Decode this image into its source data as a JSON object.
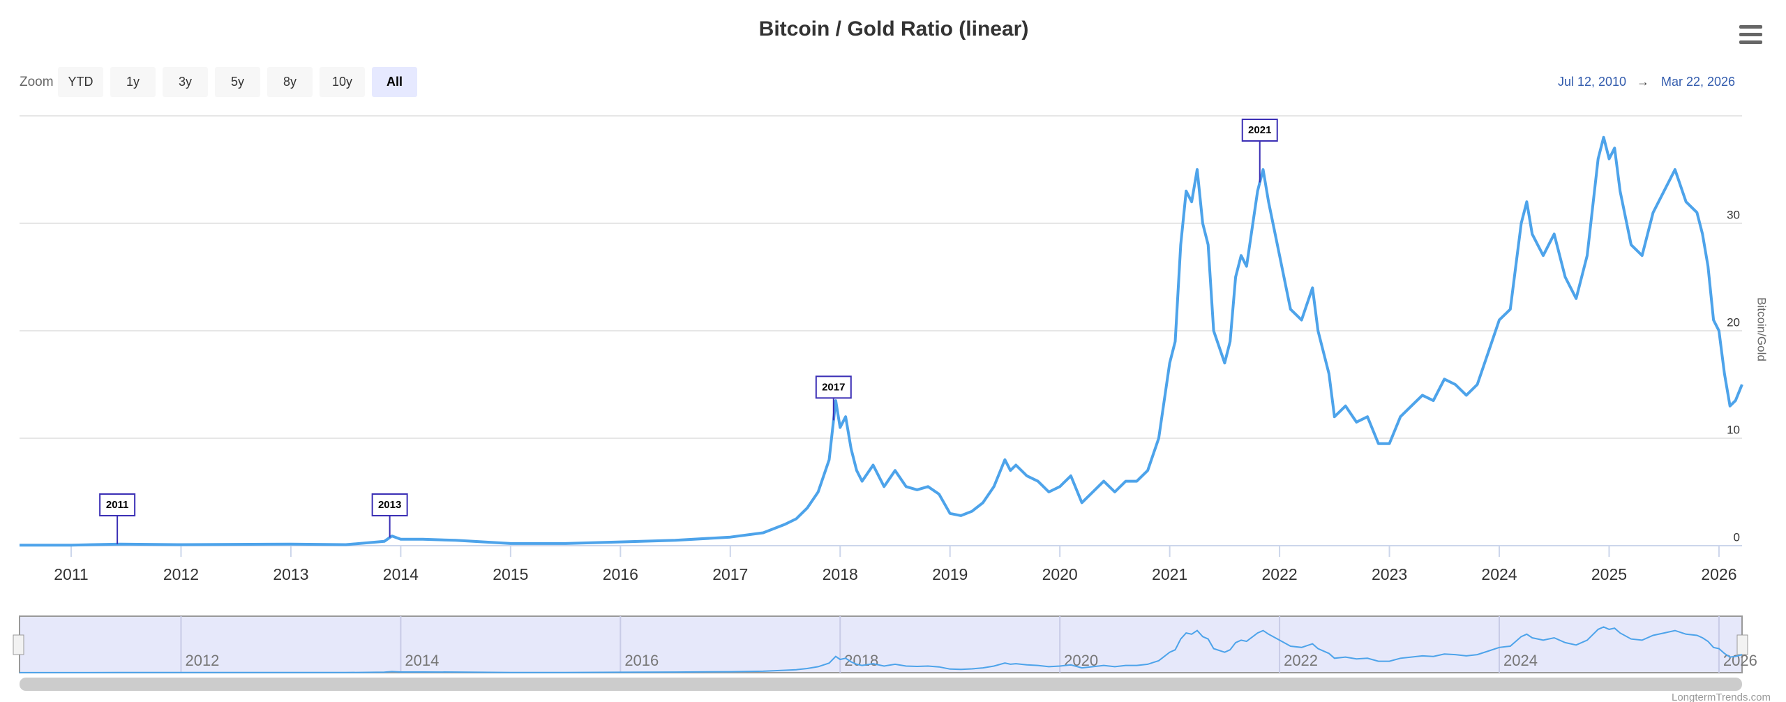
{
  "chart_data": {
    "type": "line",
    "title": "Bitcoin / Gold Ratio (linear)",
    "zoom_label": "Zoom",
    "zoom_buttons": [
      "YTD",
      "1y",
      "3y",
      "5y",
      "8y",
      "10y",
      "All"
    ],
    "active_button": 6,
    "range_from": "Jul 12, 2010",
    "range_arrow": "→",
    "range_to": "Mar 22, 2026",
    "y_axis_title": "Bitcoin/Gold",
    "credits": "LongtermTrends.com",
    "xlim": [
      2010.53,
      2026.21
    ],
    "xticks": [
      2011,
      2012,
      2013,
      2014,
      2015,
      2016,
      2017,
      2018,
      2019,
      2020,
      2021,
      2022,
      2023,
      2024,
      2025,
      2026
    ],
    "navigator_xticks": [
      2012,
      2014,
      2016,
      2018,
      2020,
      2022,
      2024,
      2026
    ],
    "ylim": [
      0,
      40
    ],
    "yticks": [
      0,
      10,
      20,
      30
    ],
    "grid": true,
    "series": [
      {
        "color": "#4da3ea",
        "x": [
          2010.53,
          2011.0,
          2011.45,
          2012.0,
          2013.0,
          2013.5,
          2013.85,
          2013.92,
          2014.0,
          2014.2,
          2014.5,
          2015.0,
          2015.5,
          2016.0,
          2016.5,
          2017.0,
          2017.3,
          2017.5,
          2017.6,
          2017.7,
          2017.8,
          2017.9,
          2017.96,
          2018.0,
          2018.05,
          2018.1,
          2018.15,
          2018.2,
          2018.3,
          2018.4,
          2018.5,
          2018.6,
          2018.7,
          2018.8,
          2018.9,
          2019.0,
          2019.1,
          2019.2,
          2019.3,
          2019.4,
          2019.5,
          2019.55,
          2019.6,
          2019.7,
          2019.8,
          2019.9,
          2020.0,
          2020.1,
          2020.2,
          2020.3,
          2020.4,
          2020.5,
          2020.6,
          2020.7,
          2020.8,
          2020.9,
          2021.0,
          2021.05,
          2021.1,
          2021.15,
          2021.2,
          2021.25,
          2021.3,
          2021.35,
          2021.4,
          2021.5,
          2021.55,
          2021.6,
          2021.65,
          2021.7,
          2021.8,
          2021.85,
          2021.9,
          2022.0,
          2022.1,
          2022.2,
          2022.3,
          2022.35,
          2022.45,
          2022.5,
          2022.6,
          2022.7,
          2022.8,
          2022.9,
          2023.0,
          2023.1,
          2023.2,
          2023.3,
          2023.4,
          2023.5,
          2023.6,
          2023.7,
          2023.8,
          2023.9,
          2024.0,
          2024.1,
          2024.2,
          2024.25,
          2024.3,
          2024.4,
          2024.5,
          2024.6,
          2024.7,
          2024.8,
          2024.9,
          2024.95,
          2025.0,
          2025.05,
          2025.1,
          2025.2,
          2025.3,
          2025.4,
          2025.5,
          2025.6,
          2025.7,
          2025.8,
          2025.85,
          2025.9,
          2025.95,
          2026.0,
          2026.05,
          2026.1,
          2026.15,
          2026.21
        ],
        "values": [
          0.05,
          0.05,
          0.15,
          0.1,
          0.15,
          0.1,
          0.4,
          0.9,
          0.6,
          0.6,
          0.5,
          0.2,
          0.2,
          0.35,
          0.5,
          0.8,
          1.2,
          2,
          2.5,
          3.5,
          5,
          8,
          13.5,
          11,
          12,
          9,
          7,
          6,
          7.5,
          5.5,
          7,
          5.5,
          5.2,
          5.5,
          4.8,
          3,
          2.8,
          3.2,
          4,
          5.5,
          8,
          7,
          7.5,
          6.5,
          6,
          5,
          5.5,
          6.5,
          4,
          5,
          6,
          5,
          6,
          6,
          7,
          10,
          17,
          19,
          28,
          33,
          32,
          35,
          30,
          28,
          20,
          17,
          19,
          25,
          27,
          26,
          33,
          35,
          32,
          27,
          22,
          21,
          24,
          20,
          16,
          12,
          13,
          11.5,
          12,
          9.5,
          9.5,
          12,
          13,
          14,
          13.5,
          15.5,
          15,
          14,
          15,
          18,
          21,
          22,
          30,
          32,
          29,
          27,
          29,
          25,
          23,
          27,
          36,
          38,
          36,
          37,
          33,
          28,
          27,
          31,
          33,
          35,
          32,
          31,
          29,
          26,
          21,
          20,
          16,
          13,
          13.5,
          15
        ]
      }
    ],
    "flags": [
      {
        "label": "2011",
        "x": 2011.42
      },
      {
        "label": "2013",
        "x": 2013.9
      },
      {
        "label": "2017",
        "x": 2017.94
      },
      {
        "label": "2021",
        "x": 2021.82
      }
    ]
  }
}
